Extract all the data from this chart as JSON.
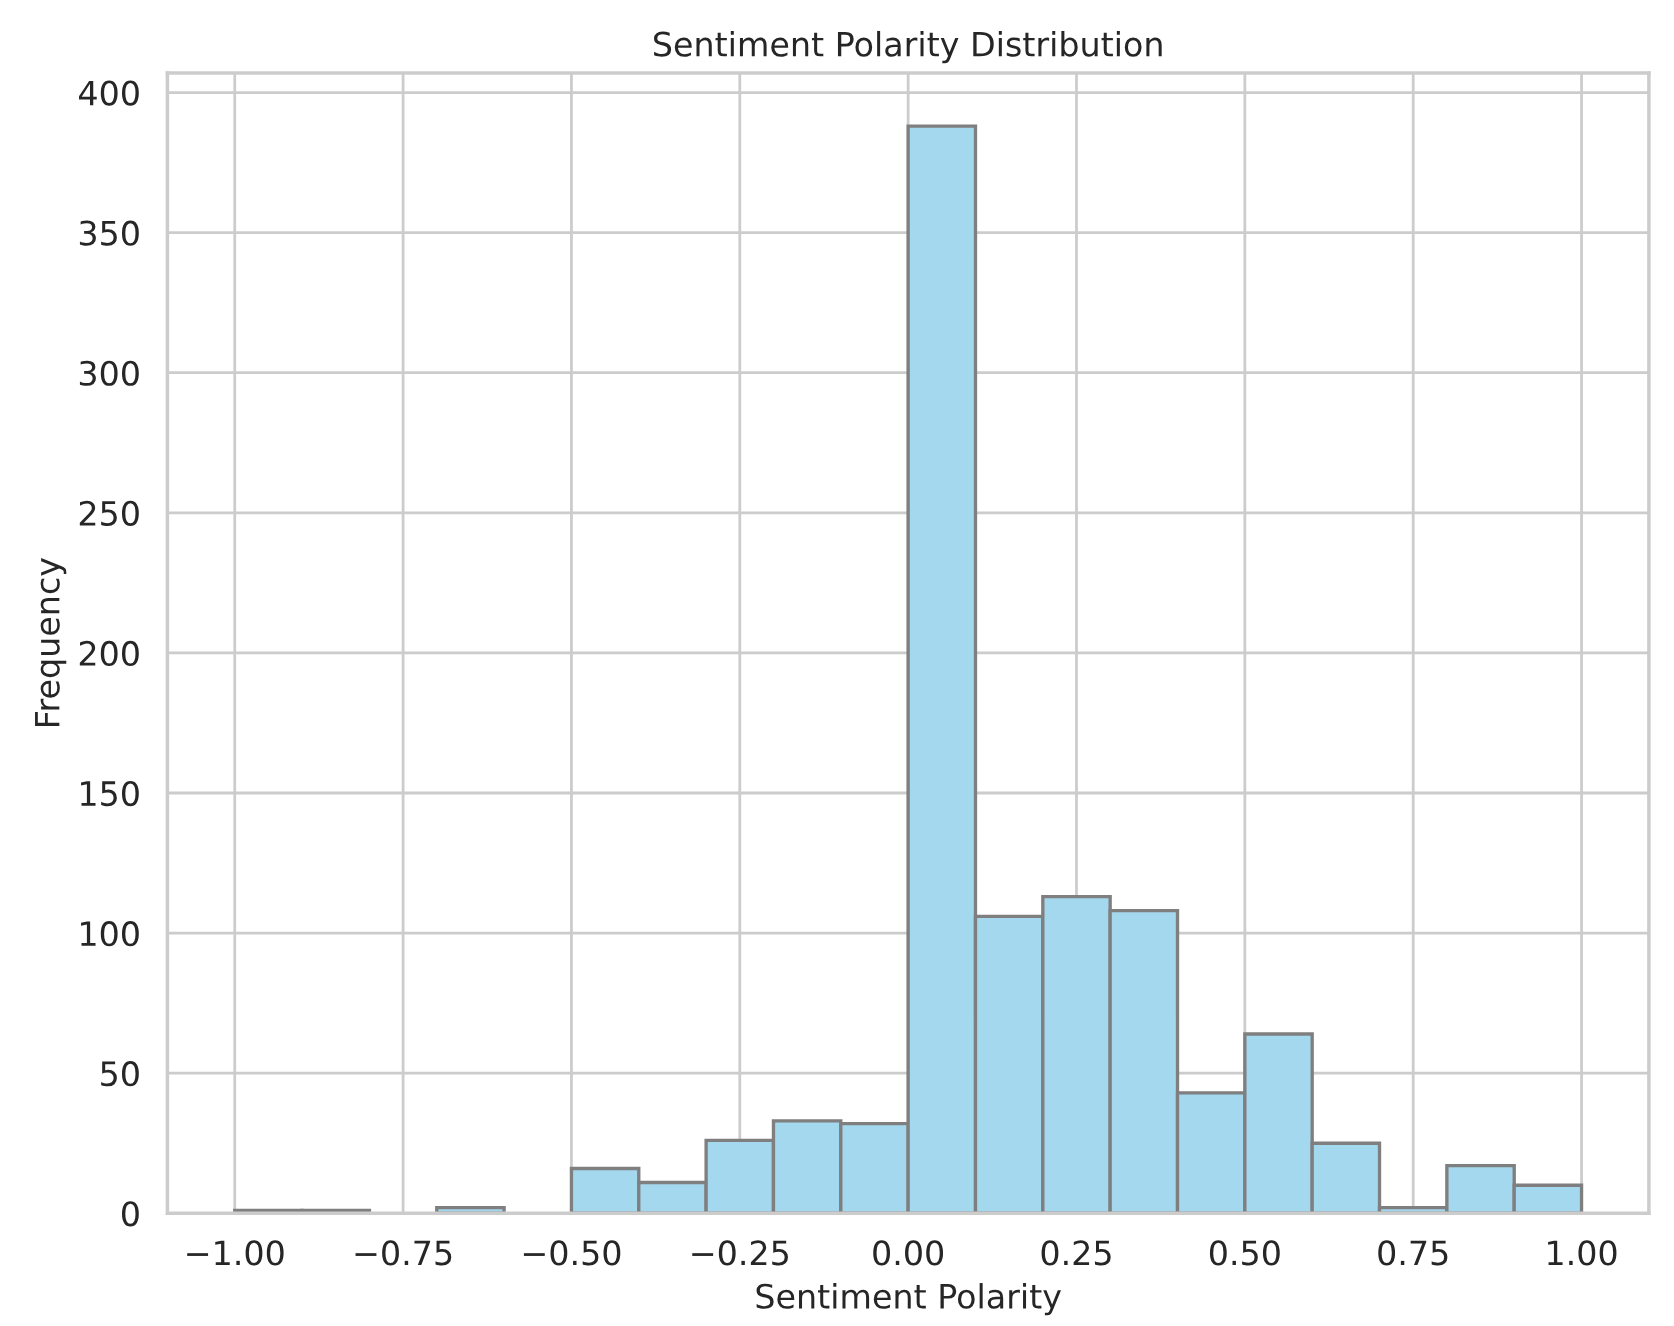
{
  "chart_data": {
    "type": "histogram",
    "title": "Sentiment Polarity Distribution",
    "xlabel": "Sentiment Polarity",
    "ylabel": "Frequency",
    "bins": [
      -1.0,
      -0.9,
      -0.8,
      -0.7,
      -0.6,
      -0.5,
      -0.4,
      -0.3,
      -0.2,
      -0.1,
      0.0,
      0.1,
      0.2,
      0.3,
      0.4,
      0.5,
      0.6,
      0.7,
      0.8,
      0.9,
      1.0
    ],
    "values": [
      1,
      1,
      0,
      2,
      0,
      16,
      11,
      26,
      33,
      32,
      388,
      106,
      113,
      108,
      43,
      64,
      25,
      2,
      17,
      10
    ],
    "color": "#a4d8ee",
    "xlim": [
      -1.1,
      1.1
    ],
    "xticks": [
      {
        "value": -1.0,
        "label": "−1.00"
      },
      {
        "value": -0.75,
        "label": "−0.75"
      },
      {
        "value": -0.5,
        "label": "−0.50"
      },
      {
        "value": -0.25,
        "label": "−0.25"
      },
      {
        "value": 0.0,
        "label": "0.00"
      },
      {
        "value": 0.25,
        "label": "0.25"
      },
      {
        "value": 0.5,
        "label": "0.50"
      },
      {
        "value": 0.75,
        "label": "0.75"
      },
      {
        "value": 1.0,
        "label": "1.00"
      }
    ],
    "ylim": [
      0,
      407
    ],
    "yticks": [
      0,
      50,
      100,
      150,
      200,
      250,
      300,
      350,
      400
    ],
    "grid": true,
    "legend": false
  }
}
